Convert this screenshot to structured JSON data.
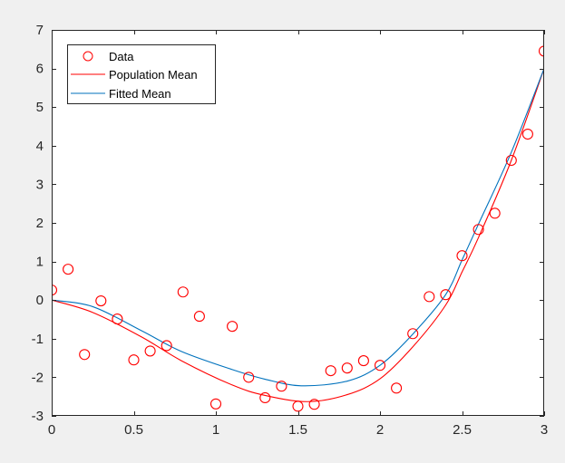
{
  "chart_data": {
    "type": "scatter+line",
    "title": "",
    "xlabel": "",
    "ylabel": "",
    "xlim": [
      0,
      3
    ],
    "ylim": [
      -3,
      7
    ],
    "grid": false,
    "legend_position": "northwest",
    "x_ticks": [
      "0",
      "0.5",
      "1",
      "1.5",
      "2",
      "2.5",
      "3"
    ],
    "x_tick_values": [
      0,
      0.5,
      1,
      1.5,
      2,
      2.5,
      3
    ],
    "y_ticks": [
      "-3",
      "-2",
      "-1",
      "0",
      "1",
      "2",
      "3",
      "4",
      "5",
      "6",
      "7"
    ],
    "y_tick_values": [
      -3,
      -2,
      -1,
      0,
      1,
      2,
      3,
      4,
      5,
      6,
      7
    ],
    "series": [
      {
        "name": "Data",
        "style": "markers",
        "marker": "open-circle",
        "color": "#ff0000",
        "x": [
          0,
          0.1,
          0.2,
          0.3,
          0.4,
          0.5,
          0.6,
          0.7,
          0.8,
          0.9,
          1.0,
          1.1,
          1.2,
          1.3,
          1.4,
          1.5,
          1.6,
          1.7,
          1.8,
          1.9,
          2.0,
          2.1,
          2.2,
          2.3,
          2.4,
          2.5,
          2.6,
          2.7,
          2.8,
          2.9,
          3.0
        ],
        "y": [
          0.26,
          0.8,
          -1.41,
          -0.02,
          -0.49,
          -1.55,
          -1.32,
          -1.18,
          0.21,
          -0.42,
          -2.69,
          -0.68,
          -2.0,
          -2.53,
          -2.23,
          -2.75,
          -2.7,
          -1.83,
          -1.76,
          -1.57,
          -1.69,
          -2.28,
          -0.87,
          0.09,
          0.14,
          1.15,
          1.83,
          2.25,
          3.62,
          4.3,
          6.45
        ]
      },
      {
        "name": "Population Mean",
        "style": "line",
        "color": "#ff0000",
        "x": [
          0,
          0.25,
          0.55,
          0.79,
          1.1,
          1.3,
          1.56,
          1.8,
          2.0,
          2.2,
          2.4,
          2.5,
          2.6,
          2.8,
          3.0
        ],
        "y": [
          0,
          -0.32,
          -0.96,
          -1.57,
          -2.2,
          -2.47,
          -2.63,
          -2.45,
          -2.04,
          -1.21,
          -0.13,
          0.73,
          1.62,
          3.62,
          6.0
        ]
      },
      {
        "name": "Fitted Mean",
        "style": "line",
        "color": "#0072bd",
        "x": [
          0,
          0.25,
          0.55,
          0.79,
          1.1,
          1.3,
          1.52,
          1.8,
          2.0,
          2.2,
          2.4,
          2.5,
          2.6,
          2.8,
          3.0
        ],
        "y": [
          0,
          -0.17,
          -0.8,
          -1.33,
          -1.8,
          -2.05,
          -2.22,
          -2.1,
          -1.69,
          -0.88,
          0.14,
          1.04,
          1.97,
          3.83,
          6.0
        ]
      }
    ]
  },
  "legend": {
    "items": [
      {
        "label": "Data"
      },
      {
        "label": "Population Mean"
      },
      {
        "label": "Fitted Mean"
      }
    ]
  },
  "colors": {
    "figure_background": "#f0f0f0",
    "axes_background": "#ffffff",
    "data_marker": "#ff0000",
    "population_mean": "#ff0000",
    "fitted_mean": "#0072bd",
    "axis": "#262626"
  }
}
